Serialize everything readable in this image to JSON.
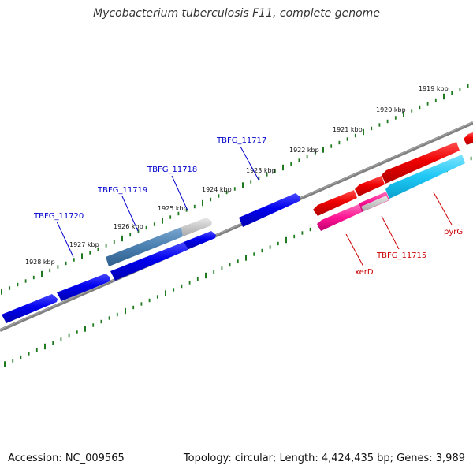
{
  "title": "Mycobacterium tuberculosis F11, complete genome",
  "footer": {
    "accession": "Accession: NC_009565",
    "topology": "Topology: circular; Length: 4,424,435 bp; Genes: 3,989"
  },
  "kbp_labels": [
    "1919 kbp",
    "1920 kbp",
    "1921 kbp",
    "1922 kbp",
    "1923 kbp",
    "1924 kbp",
    "1925 kbp",
    "1926 kbp",
    "1927 kbp",
    "1928 kbp"
  ],
  "gene_labels": [
    "TBFG_11717",
    "TBFG_11718",
    "TBFG_11719",
    "TBFG_11720",
    "pyrG",
    "TBFG_11715",
    "xerD"
  ],
  "colors": {
    "forward_gene": "#0000ee",
    "forward_gene_alt": "#4a7fb0",
    "reverse_gene": "#ee0000",
    "reverse_gene_alt": "#ff1493",
    "highlight_gene": "#1ec8f5",
    "pseudo_gene": "#c8c8c8",
    "backbone": "#808080",
    "ticks": "#1f7a1f"
  }
}
